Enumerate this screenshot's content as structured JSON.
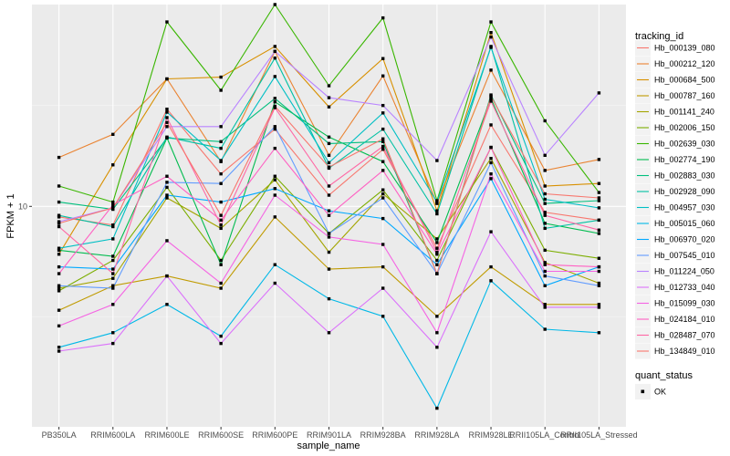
{
  "chart_data": {
    "type": "line",
    "title": "",
    "xlabel": "sample_name",
    "ylabel": "FPKM + 1",
    "y_scale": "log10",
    "ylim": [
      2.2,
      40
    ],
    "y_ticks": [
      10
    ],
    "y_tick_labels": [
      "10"
    ],
    "grid": true,
    "categories": [
      "PB350LA",
      "RRIM600LA",
      "RRIM600LE",
      "RRIM600SE",
      "RRIM600PE",
      "RRIM901LA",
      "RRIM928BA",
      "RRIM928LA",
      "RRIM928LE",
      "RRII105LA_Control",
      "RRII105LA_Stressed"
    ],
    "legend": {
      "title": "tracking_id",
      "placement": "right",
      "shape_title": "quant_status",
      "shape_items": [
        {
          "label": "OK",
          "shape": "square"
        }
      ]
    },
    "series": [
      {
        "name": "Hb_000139_080",
        "color": "#F8766D",
        "values": [
          9.3,
          8.8,
          19.5,
          12.5,
          17.0,
          10.8,
          14.8,
          7.5,
          17.5,
          9.6,
          9.1
        ]
      },
      {
        "name": "Hb_000212_120",
        "color": "#EA8331",
        "values": [
          14.0,
          16.4,
          24.0,
          13.6,
          29.0,
          14.2,
          24.5,
          10.2,
          25.5,
          12.8,
          13.8
        ]
      },
      {
        "name": "Hb_000684_500",
        "color": "#D89000",
        "values": [
          7.2,
          13.3,
          24.0,
          24.3,
          30.0,
          19.8,
          27.6,
          9.7,
          33.0,
          11.5,
          11.7
        ]
      },
      {
        "name": "Hb_000787_160",
        "color": "#C09B00",
        "values": [
          4.9,
          5.8,
          6.2,
          5.7,
          9.3,
          6.5,
          6.6,
          4.7,
          6.6,
          5.1,
          5.1
        ]
      },
      {
        "name": "Hb_001141_240",
        "color": "#A3A500",
        "values": [
          5.7,
          6.1,
          10.6,
          8.6,
          12.0,
          7.3,
          10.9,
          8.0,
          13.9,
          6.8,
          5.9
        ]
      },
      {
        "name": "Hb_002006_150",
        "color": "#7CAE00",
        "values": [
          5.6,
          6.9,
          11.4,
          6.9,
          12.3,
          8.3,
          11.2,
          6.9,
          15.0,
          7.4,
          7.0
        ]
      },
      {
        "name": "Hb_002639_030",
        "color": "#39B600",
        "values": [
          11.5,
          10.3,
          35.5,
          22.2,
          40.0,
          22.9,
          36.5,
          10.4,
          35.5,
          18.0,
          11.0
        ]
      },
      {
        "name": "Hb_002774_190",
        "color": "#00BB4E",
        "values": [
          7.4,
          7.1,
          16.0,
          6.7,
          20.5,
          16.1,
          13.6,
          7.8,
          21.0,
          8.9,
          8.3
        ]
      },
      {
        "name": "Hb_002883_030",
        "color": "#00BF7D",
        "values": [
          10.3,
          9.8,
          16.0,
          15.6,
          21.0,
          15.4,
          15.6,
          6.3,
          21.5,
          10.2,
          10.4
        ]
      },
      {
        "name": "Hb_002928_090",
        "color": "#00C1A3",
        "values": [
          9.4,
          8.7,
          16.1,
          14.9,
          27.7,
          13.0,
          17.0,
          9.5,
          30.0,
          8.6,
          9.1
        ]
      },
      {
        "name": "Hb_004957_030",
        "color": "#00BFC4",
        "values": [
          7.5,
          8.0,
          19.1,
          13.7,
          24.4,
          13.5,
          19.0,
          10.3,
          29.8,
          10.5,
          9.9
        ]
      },
      {
        "name": "Hb_005015_060",
        "color": "#00B8E7",
        "values": [
          3.8,
          4.2,
          5.1,
          4.1,
          6.7,
          5.3,
          4.7,
          2.5,
          6.0,
          4.3,
          4.2
        ]
      },
      {
        "name": "Hb_006970_020",
        "color": "#00A9FF",
        "values": [
          6.6,
          6.5,
          10.8,
          10.3,
          11.3,
          9.7,
          9.2,
          6.7,
          12.1,
          5.8,
          6.6
        ]
      },
      {
        "name": "Hb_007545_010",
        "color": "#619CFF",
        "values": [
          5.8,
          5.7,
          11.8,
          11.7,
          17.3,
          8.3,
          10.6,
          6.3,
          13.5,
          6.2,
          5.8
        ]
      },
      {
        "name": "Hb_011224_050",
        "color": "#B983FF",
        "values": [
          9.0,
          9.9,
          17.3,
          17.3,
          29.0,
          21.1,
          20.0,
          13.7,
          32.0,
          14.2,
          21.8
        ]
      },
      {
        "name": "Hb_012733_040",
        "color": "#DB72FB",
        "values": [
          3.7,
          3.9,
          6.2,
          3.9,
          5.9,
          4.2,
          5.7,
          3.8,
          8.4,
          5.0,
          5.0
        ]
      },
      {
        "name": "Hb_015099_030",
        "color": "#F564E3",
        "values": [
          4.4,
          5.1,
          7.9,
          5.9,
          10.8,
          8.1,
          7.7,
          4.2,
          12.5,
          6.4,
          6.4
        ]
      },
      {
        "name": "Hb_024184_010",
        "color": "#FF61C3",
        "values": [
          6.3,
          10.1,
          12.3,
          9.1,
          14.9,
          9.4,
          12.8,
          7.2,
          15.0,
          6.7,
          6.6
        ]
      },
      {
        "name": "Hb_028487_070",
        "color": "#FF67A4",
        "values": [
          8.7,
          6.3,
          18.4,
          8.8,
          19.7,
          11.5,
          15.1,
          7.3,
          20.6,
          9.4,
          8.5
        ]
      },
      {
        "name": "Hb_134849_010",
        "color": "#F8766D",
        "values": [
          8.9,
          9.9,
          17.8,
          9.4,
          19.9,
          13.1,
          15.9,
          6.3,
          21.3,
          10.9,
          10.6
        ]
      }
    ]
  }
}
